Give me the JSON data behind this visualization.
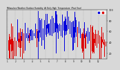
{
  "background_color": "#d8d8d8",
  "plot_bg_color": "#d8d8d8",
  "ylim_low": 10,
  "ylim_high": 100,
  "num_days": 365,
  "seed": 42,
  "threshold": 50,
  "bar_width": 0.7,
  "blue_color": "#0000dd",
  "red_color": "#dd0000",
  "grid_color": "#aaaaaa",
  "title_text": "Milwaukee Weather Outdoor Humidity  At Daily High  Temperature  (Past Year)",
  "legend_blue": "  ",
  "legend_red": "  "
}
